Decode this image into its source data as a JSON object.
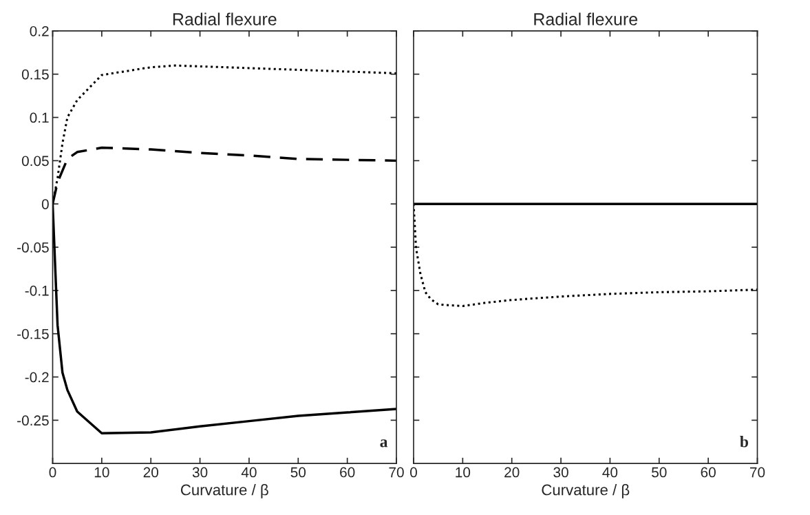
{
  "chart_data": [
    {
      "type": "line",
      "title": "Radial flexure",
      "xlabel": "Curvature / β",
      "xlim": [
        0,
        70
      ],
      "ylim": [
        -0.3,
        0.2
      ],
      "xticks": [
        0,
        10,
        20,
        30,
        40,
        50,
        60,
        70
      ],
      "yticks": [
        -0.25,
        -0.2,
        -0.15,
        -0.1,
        -0.05,
        0,
        0.05,
        0.1,
        0.15,
        0.2
      ],
      "grid": false,
      "annotations": [
        "a"
      ],
      "series": [
        {
          "color": "#000000",
          "line_style": "dotted",
          "x": [
            0,
            1,
            2,
            3,
            5,
            10,
            20,
            25,
            30,
            40,
            50,
            60,
            70
          ],
          "values": [
            0,
            0.03,
            0.07,
            0.1,
            0.12,
            0.149,
            0.158,
            0.16,
            0.159,
            0.157,
            0.155,
            0.153,
            0.151
          ]
        },
        {
          "color": "#000000",
          "line_style": "dashed",
          "x": [
            0,
            1,
            3,
            5,
            10,
            20,
            30,
            40,
            50,
            60,
            70
          ],
          "values": [
            0,
            0.025,
            0.052,
            0.06,
            0.065,
            0.063,
            0.059,
            0.056,
            0.052,
            0.051,
            0.05
          ]
        },
        {
          "color": "#000000",
          "line_style": "solid",
          "x": [
            0,
            1,
            2,
            3,
            5,
            10,
            20,
            30,
            40,
            50,
            60,
            70
          ],
          "values": [
            0,
            -0.14,
            -0.195,
            -0.215,
            -0.24,
            -0.265,
            -0.264,
            -0.257,
            -0.251,
            -0.245,
            -0.241,
            -0.237
          ]
        }
      ]
    },
    {
      "type": "line",
      "title": "Radial flexure",
      "xlabel": "Curvature / β",
      "xlim": [
        0,
        70
      ],
      "ylim": [
        -0.3,
        0.2
      ],
      "xticks": [
        0,
        10,
        20,
        30,
        40,
        50,
        60,
        70
      ],
      "yticks": [
        -0.25,
        -0.2,
        -0.15,
        -0.1,
        -0.05,
        0,
        0.05,
        0.1,
        0.15,
        0.2
      ],
      "grid": false,
      "tick_labels": "x",
      "annotations": [
        "b"
      ],
      "series": [
        {
          "color": "#000000",
          "line_style": "solid",
          "x": [
            0,
            70
          ],
          "values": [
            0,
            0
          ]
        },
        {
          "color": "#000000",
          "line_style": "dotted",
          "x": [
            0,
            0.5,
            1.4,
            2.4,
            3.5,
            5,
            7,
            10,
            15,
            20,
            30,
            40,
            50,
            60,
            70
          ],
          "values": [
            0,
            -0.051,
            -0.081,
            -0.102,
            -0.11,
            -0.116,
            -0.117,
            -0.118,
            -0.114,
            -0.111,
            -0.107,
            -0.104,
            -0.102,
            -0.101,
            -0.099
          ]
        }
      ]
    }
  ]
}
